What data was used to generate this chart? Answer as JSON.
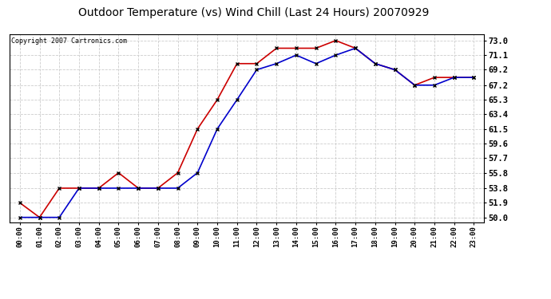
{
  "title": "Outdoor Temperature (vs) Wind Chill (Last 24 Hours) 20070929",
  "copyright": "Copyright 2007 Cartronics.com",
  "hours": [
    "00:00",
    "01:00",
    "02:00",
    "03:00",
    "04:00",
    "05:00",
    "06:00",
    "07:00",
    "08:00",
    "09:00",
    "10:00",
    "11:00",
    "12:00",
    "13:00",
    "14:00",
    "15:00",
    "16:00",
    "17:00",
    "18:00",
    "19:00",
    "20:00",
    "21:00",
    "22:00",
    "23:00"
  ],
  "temp": [
    51.9,
    50.0,
    53.8,
    53.8,
    53.8,
    55.8,
    53.8,
    53.8,
    55.8,
    61.5,
    65.3,
    70.0,
    70.0,
    72.0,
    72.0,
    72.0,
    73.0,
    72.0,
    70.0,
    69.2,
    67.2,
    68.2,
    68.2,
    68.2
  ],
  "wind_chill": [
    50.0,
    50.0,
    50.0,
    53.8,
    53.8,
    53.8,
    53.8,
    53.8,
    53.8,
    55.8,
    61.5,
    65.3,
    69.2,
    70.0,
    71.1,
    70.0,
    71.1,
    72.0,
    70.0,
    69.2,
    67.2,
    67.2,
    68.2,
    68.2
  ],
  "temp_color": "#cc0000",
  "wind_chill_color": "#0000cc",
  "ytick_values": [
    50.0,
    51.9,
    53.8,
    55.8,
    57.7,
    59.6,
    61.5,
    63.4,
    65.3,
    67.2,
    69.2,
    71.1,
    73.0
  ],
  "ytick_labels": [
    "50.0",
    "51.9",
    "53.8",
    "55.8",
    "57.7",
    "59.6",
    "61.5",
    "63.4",
    "65.3",
    "67.2",
    "69.2",
    "71.1",
    "73.0"
  ],
  "ylim_min": 49.3,
  "ylim_max": 73.8,
  "bg_color": "#ffffff",
  "grid_color": "#cccccc",
  "title_fontsize": 10,
  "copyright_fontsize": 6,
  "marker_color": "#000000",
  "marker_size": 3.5,
  "line_width": 1.2
}
